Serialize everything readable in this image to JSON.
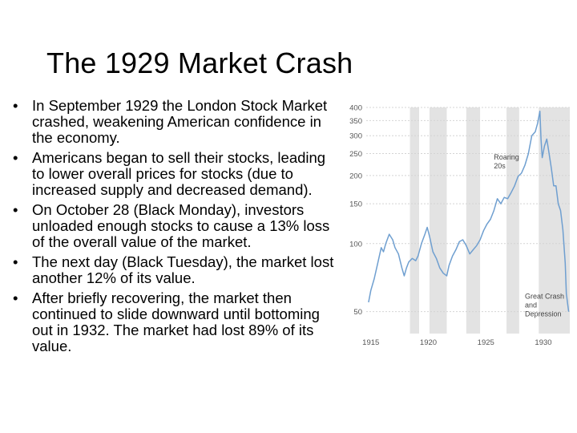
{
  "slide": {
    "title": "The 1929 Market Crash",
    "bullet_glyph": "•",
    "bullets": [
      "In September 1929 the London Stock Market crashed, weakening American confidence in the economy.",
      "Americans began to sell their stocks, leading to lower overall prices for stocks (due to increased supply and decreased demand).",
      "On October 28 (Black Monday), investors unloaded enough stocks to cause a 13% loss of the overall value of the market.",
      "The next day (Black Tuesday), the market lost another 12% of its value.",
      "After briefly recovering, the market then continued to slide downward until bottoming out in 1932. The market had lost 89% of its value."
    ]
  },
  "chart_data": {
    "type": "line",
    "title": "",
    "xlabel": "",
    "ylabel": "",
    "x_ticks": [
      1915,
      1920,
      1925,
      1930
    ],
    "y_ticks": [
      50,
      100,
      150,
      200,
      250,
      300,
      350,
      400
    ],
    "ylim": [
      40,
      400
    ],
    "xlim": [
      1914.6,
      1932.3
    ],
    "log_scale_y": true,
    "grid": true,
    "line_color": "#6f9fd0",
    "band_color": "#e3e3e3",
    "shaded_periods": [
      [
        1918.4,
        1919.2
      ],
      [
        1920.1,
        1921.6
      ],
      [
        1923.3,
        1924.5
      ],
      [
        1926.8,
        1927.9
      ],
      [
        1929.6,
        1932.3
      ]
    ],
    "annotations": [
      {
        "lines": [
          "Roaring",
          "20s"
        ],
        "x": 1925.7,
        "y": 235
      },
      {
        "lines": [
          "Great Crash",
          "and",
          "Depression"
        ],
        "x": 1928.4,
        "y": 57
      }
    ],
    "series": [
      {
        "points": [
          [
            1914.8,
            55
          ],
          [
            1915.0,
            62
          ],
          [
            1915.3,
            70
          ],
          [
            1915.6,
            82
          ],
          [
            1915.9,
            96
          ],
          [
            1916.1,
            92
          ],
          [
            1916.3,
            100
          ],
          [
            1916.6,
            110
          ],
          [
            1916.9,
            104
          ],
          [
            1917.1,
            96
          ],
          [
            1917.4,
            90
          ],
          [
            1917.7,
            78
          ],
          [
            1917.9,
            72
          ],
          [
            1918.1,
            78
          ],
          [
            1918.3,
            83
          ],
          [
            1918.6,
            86
          ],
          [
            1918.9,
            84
          ],
          [
            1919.1,
            88
          ],
          [
            1919.4,
            100
          ],
          [
            1919.7,
            110
          ],
          [
            1919.9,
            118
          ],
          [
            1920.1,
            108
          ],
          [
            1920.4,
            92
          ],
          [
            1920.7,
            86
          ],
          [
            1921.0,
            78
          ],
          [
            1921.3,
            74
          ],
          [
            1921.6,
            72
          ],
          [
            1921.8,
            80
          ],
          [
            1922.1,
            88
          ],
          [
            1922.4,
            94
          ],
          [
            1922.7,
            102
          ],
          [
            1923.0,
            104
          ],
          [
            1923.3,
            98
          ],
          [
            1923.6,
            90
          ],
          [
            1923.9,
            94
          ],
          [
            1924.2,
            98
          ],
          [
            1924.5,
            104
          ],
          [
            1924.8,
            114
          ],
          [
            1925.1,
            122
          ],
          [
            1925.4,
            128
          ],
          [
            1925.7,
            140
          ],
          [
            1926.0,
            158
          ],
          [
            1926.3,
            150
          ],
          [
            1926.6,
            160
          ],
          [
            1926.9,
            158
          ],
          [
            1927.2,
            168
          ],
          [
            1927.5,
            180
          ],
          [
            1927.8,
            198
          ],
          [
            1928.1,
            205
          ],
          [
            1928.4,
            222
          ],
          [
            1928.7,
            250
          ],
          [
            1929.0,
            300
          ],
          [
            1929.3,
            312
          ],
          [
            1929.5,
            340
          ],
          [
            1929.7,
            385
          ],
          [
            1929.8,
            290
          ],
          [
            1929.9,
            240
          ],
          [
            1930.1,
            270
          ],
          [
            1930.3,
            290
          ],
          [
            1930.5,
            250
          ],
          [
            1930.7,
            215
          ],
          [
            1930.9,
            180
          ],
          [
            1931.1,
            180
          ],
          [
            1931.3,
            150
          ],
          [
            1931.5,
            140
          ],
          [
            1931.7,
            115
          ],
          [
            1931.9,
            82
          ],
          [
            1932.0,
            60
          ],
          [
            1932.2,
            50
          ]
        ]
      }
    ]
  }
}
